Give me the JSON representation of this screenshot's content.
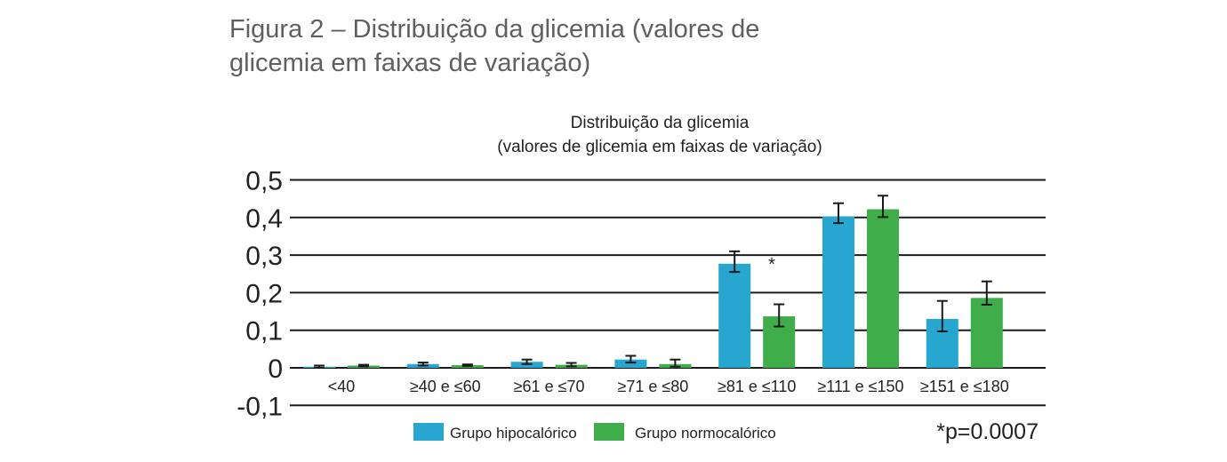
{
  "figure_caption": [
    "Figura 2 – Distribuição da glicemia (valores de",
    "glicemia em faixas de variação)"
  ],
  "chart_data": {
    "type": "bar",
    "title": "Distribuição da glicemia",
    "subtitle": "(valores de glicemia em faixas de variação)",
    "categories": [
      "<40",
      "≥40 e ≤60",
      "≥61 e ≤70",
      "≥71 e ≤80",
      "≥81 e ≤110",
      "≥111 e ≤150",
      "≥151 e ≤180"
    ],
    "series": [
      {
        "name": "Grupo hipocalórico",
        "color": "#27a7d0",
        "values": [
          0.003,
          0.01,
          0.016,
          0.022,
          0.277,
          0.403,
          0.13
        ],
        "err_low": [
          0.003,
          0.004,
          0.006,
          0.008,
          0.022,
          0.018,
          0.033
        ],
        "err_high": [
          0.003,
          0.004,
          0.006,
          0.01,
          0.033,
          0.035,
          0.048
        ]
      },
      {
        "name": "Grupo normocalórico",
        "color": "#3fae4a",
        "values": [
          0.006,
          0.007,
          0.008,
          0.01,
          0.137,
          0.422,
          0.186
        ],
        "err_low": [
          0.002,
          0.002,
          0.004,
          0.007,
          0.027,
          0.021,
          0.018
        ],
        "err_high": [
          0.002,
          0.002,
          0.005,
          0.012,
          0.032,
          0.036,
          0.044
        ]
      }
    ],
    "yticks": [
      "0,5",
      "0,4",
      "0,3",
      "0,2",
      "0,1",
      "0",
      "-0,1"
    ],
    "ytick_values": [
      0.5,
      0.4,
      0.3,
      0.2,
      0.1,
      0,
      -0.1
    ],
    "ylim": [
      -0.1,
      0.5
    ],
    "grid": true,
    "annotation": "*",
    "footnote": "*p=0.0007",
    "legend_position": "bottom"
  }
}
